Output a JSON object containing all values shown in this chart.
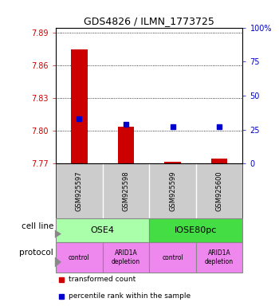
{
  "title": "GDS4826 / ILMN_1773725",
  "samples": [
    "GSM925597",
    "GSM925598",
    "GSM925599",
    "GSM925600"
  ],
  "red_values": [
    7.875,
    7.804,
    7.772,
    7.775
  ],
  "blue_values": [
    33,
    29,
    27,
    27
  ],
  "y_min": 7.77,
  "y_max": 7.895,
  "y_ticks": [
    7.77,
    7.8,
    7.83,
    7.86,
    7.89
  ],
  "y2_ticks": [
    0,
    25,
    50,
    75,
    100
  ],
  "y2_ticklabels": [
    "0",
    "25",
    "50",
    "75",
    "100%"
  ],
  "baseline": 7.77,
  "cell_line_labels": [
    "OSE4",
    "IOSE80pc"
  ],
  "cell_line_spans": [
    [
      0,
      1
    ],
    [
      2,
      3
    ]
  ],
  "cell_line_colors": [
    "#aaffaa",
    "#44dd44"
  ],
  "protocol_labels": [
    "control",
    "ARID1A\ndepletion",
    "control",
    "ARID1A\ndepletion"
  ],
  "protocol_color": "#ee88ee",
  "legend_items": [
    {
      "color": "#cc0000",
      "label": "transformed count"
    },
    {
      "color": "#0000cc",
      "label": "percentile rank within the sample"
    }
  ],
  "left_label": "cell line",
  "protocol_row_label": "protocol",
  "bar_width": 0.35,
  "red_color": "#cc0000",
  "blue_color": "#0000cc",
  "ax_bg": "#ffffff",
  "sample_bg": "#cccccc",
  "triangle_color": "#888888"
}
